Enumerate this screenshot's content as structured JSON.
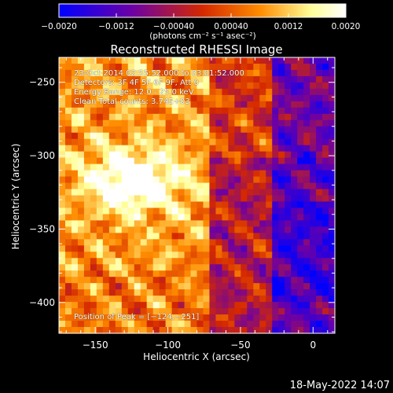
{
  "chart_data": {
    "type": "heatmap",
    "title": "Reconstructed RHESSI Image",
    "xlabel": "Heliocentric X (arcsec)",
    "ylabel": "Heliocentric Y (arcsec)",
    "xlim": [
      -175,
      15
    ],
    "ylim": [
      -421,
      -233
    ],
    "x_ticks": [
      -150,
      -100,
      -50,
      0
    ],
    "y_ticks": [
      -250,
      -300,
      -350,
      -400
    ],
    "x_tick_labels": [
      "−150",
      "−100",
      "−50",
      "0"
    ],
    "y_tick_labels": [
      "−250",
      "−300",
      "−350",
      "−400"
    ],
    "colorbar": {
      "range": [
        -0.002,
        0.002
      ],
      "ticks": [
        -0.002,
        -0.0012,
        -0.0004,
        0.0004,
        0.0012,
        0.002
      ],
      "tick_labels": [
        "−0.0020",
        "−0.0012",
        "−0.00040",
        "0.00040",
        "0.0012",
        "0.0020"
      ],
      "unit": "(photons cm⁻² s⁻¹ asec⁻²)",
      "colors": [
        "#0000ff",
        "#6a00a8",
        "#d42800",
        "#ff8c00",
        "#ffff99",
        "#ffffff"
      ]
    },
    "peak": {
      "x": -124,
      "y": -251
    },
    "annotations": [
      "23-Oct-2014 02:55:52.000 to 03:01:52.000",
      "Detectors: 3F 4F 5F 6F 9F, Att 0",
      "Energy Range: 12.0 - 25.0 keV",
      "Clean    Total counts: 3.74E+03"
    ],
    "peak_label": "Position of Peak = [−124,−251]"
  },
  "timestamp": "18-May-2022 14:07"
}
